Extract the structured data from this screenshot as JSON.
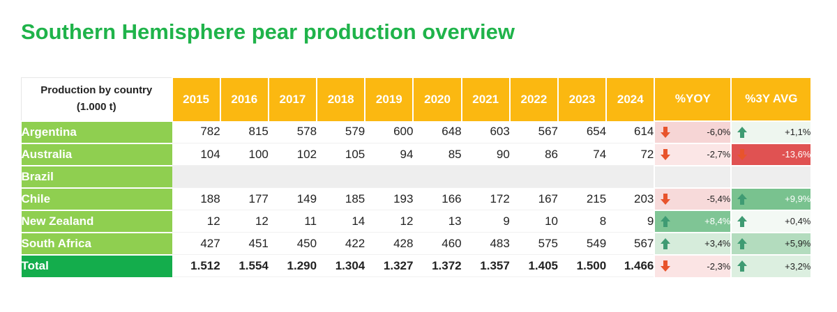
{
  "title": "Southern Hemisphere pear production overview",
  "header": {
    "label_line1": "Production by country",
    "label_line2": "(1.000 t)",
    "years": [
      "2015",
      "2016",
      "2017",
      "2018",
      "2019",
      "2020",
      "2021",
      "2022",
      "2023",
      "2024"
    ],
    "yoy": "%YOY",
    "avg": "%3Y AVG"
  },
  "rows": [
    {
      "country": "Argentina",
      "values": [
        "782",
        "815",
        "578",
        "579",
        "600",
        "648",
        "603",
        "567",
        "654",
        "614"
      ],
      "yoy": {
        "text": "-6,0%",
        "dir": "down",
        "bg": "#f6d5d5",
        "color": "#222222"
      },
      "avg": {
        "text": "+1,1%",
        "dir": "up",
        "bg": "#eef6ef",
        "color": "#222222"
      }
    },
    {
      "country": "Australia",
      "values": [
        "104",
        "100",
        "102",
        "105",
        "94",
        "85",
        "90",
        "86",
        "74",
        "72"
      ],
      "yoy": {
        "text": "-2,7%",
        "dir": "down",
        "bg": "#fbe6e6",
        "color": "#222222"
      },
      "avg": {
        "text": "-13,6%",
        "dir": "down",
        "bg": "#e05252",
        "color": "#ffffff"
      }
    },
    {
      "country": "Brazil",
      "values": [
        "",
        "",
        "",
        "",
        "",
        "",
        "",
        "",
        "",
        ""
      ],
      "yoy": {
        "text": "",
        "dir": "",
        "bg": "#eeeeee",
        "color": "#222222"
      },
      "avg": {
        "text": "",
        "dir": "",
        "bg": "#eeeeee",
        "color": "#222222"
      }
    },
    {
      "country": "Chile",
      "values": [
        "188",
        "177",
        "149",
        "185",
        "193",
        "166",
        "172",
        "167",
        "215",
        "203"
      ],
      "yoy": {
        "text": "-5,4%",
        "dir": "down",
        "bg": "#f7dada",
        "color": "#222222"
      },
      "avg": {
        "text": "+9,9%",
        "dir": "up",
        "bg": "#79c28f",
        "color": "#ffffff"
      }
    },
    {
      "country": "New Zealand",
      "values": [
        "12",
        "12",
        "11",
        "14",
        "12",
        "13",
        "9",
        "10",
        "8",
        "9"
      ],
      "yoy": {
        "text": "+8,4%",
        "dir": "up",
        "bg": "#7fc595",
        "color": "#ffffff"
      },
      "avg": {
        "text": "+0,4%",
        "dir": "up",
        "bg": "#f3f9f4",
        "color": "#222222"
      }
    },
    {
      "country": "South Africa",
      "values": [
        "427",
        "451",
        "450",
        "422",
        "428",
        "460",
        "483",
        "575",
        "549",
        "567"
      ],
      "yoy": {
        "text": "+3,4%",
        "dir": "up",
        "bg": "#d6ecdb",
        "color": "#222222"
      },
      "avg": {
        "text": "+5,9%",
        "dir": "up",
        "bg": "#b3dcbe",
        "color": "#222222"
      }
    }
  ],
  "total": {
    "country": "Total",
    "values": [
      "1.512",
      "1.554",
      "1.290",
      "1.304",
      "1.327",
      "1.372",
      "1.357",
      "1.405",
      "1.500",
      "1.466"
    ],
    "yoy": {
      "text": "-2,3%",
      "dir": "down",
      "bg": "#fbe4e4",
      "color": "#222222"
    },
    "avg": {
      "text": "+3,2%",
      "dir": "up",
      "bg": "#dcefe0",
      "color": "#222222"
    }
  },
  "colors": {
    "title": "#1fb34a",
    "header_bg": "#fbb811",
    "country_bg": "#8fcf50",
    "total_bg": "#14ad4c",
    "arrow_down": "#e8542c",
    "arrow_up": "#3f9b73"
  },
  "icons": {
    "down": "arrow-down-icon",
    "up": "arrow-up-icon"
  }
}
